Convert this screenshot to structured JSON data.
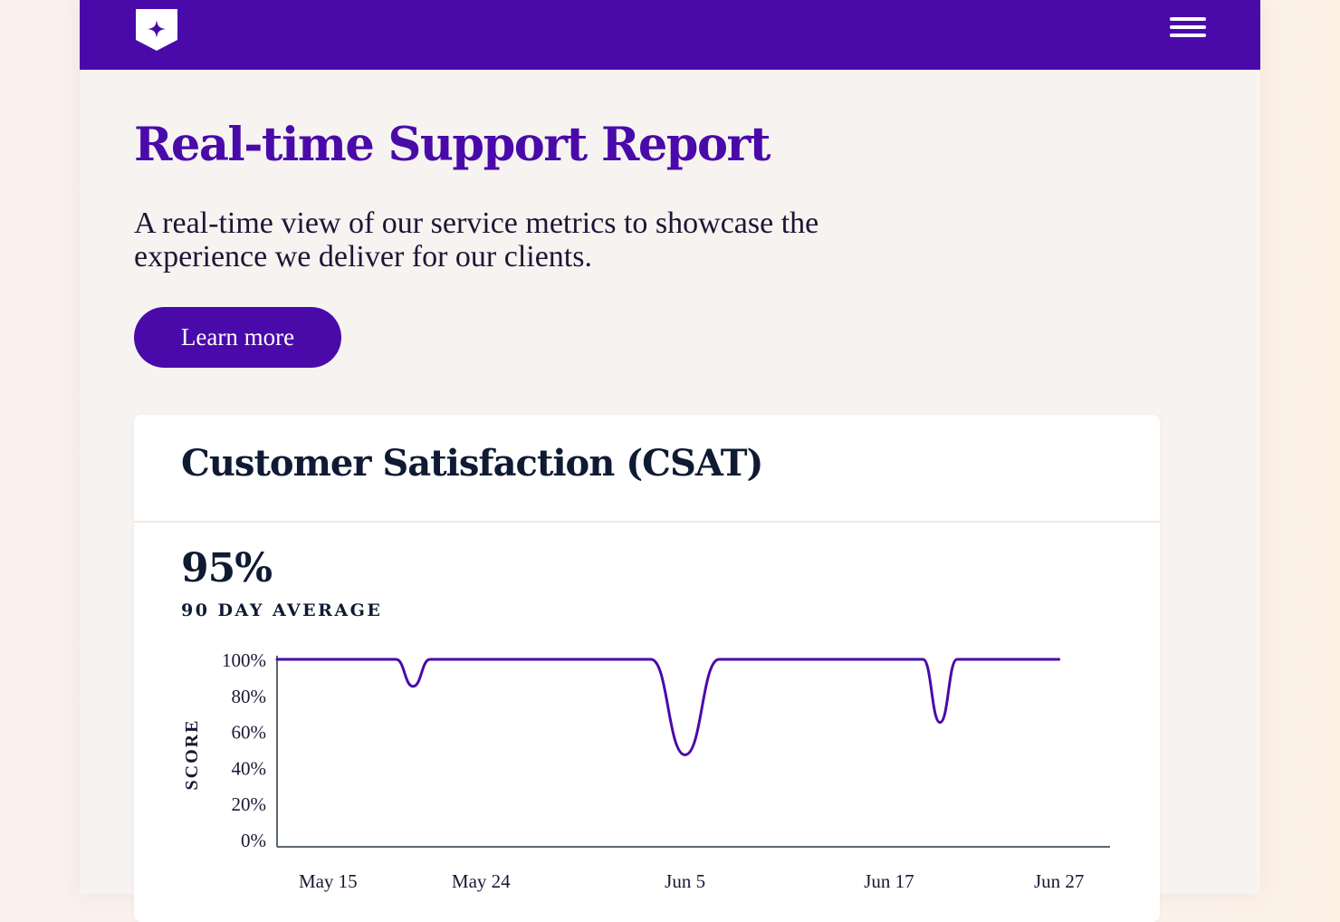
{
  "header": {
    "logo_icon": "shield-star-icon",
    "menu_icon": "hamburger-menu-icon",
    "background_color": "#4a0aaa"
  },
  "hero": {
    "title": "Real-time Support Report",
    "subtitle": "A real-time view of our service metrics to showcase the experience we deliver for our clients.",
    "cta_label": "Learn more"
  },
  "csat_card": {
    "title": "Customer Satisfaction (CSAT)",
    "average_value": "95%",
    "average_label": "90 DAY AVERAGE"
  },
  "chart_data": {
    "type": "line",
    "title": "",
    "xlabel": "",
    "ylabel": "SCORE",
    "ylim": [
      0,
      100
    ],
    "yticks": [
      "0%",
      "20%",
      "40%",
      "60%",
      "80%",
      "100%"
    ],
    "xticks": [
      "May 15",
      "May 24",
      "Jun 5",
      "Jun 17",
      "Jun 27"
    ],
    "x": [
      "May 12",
      "May 18",
      "May 19",
      "May 20",
      "May 21",
      "Jun 2",
      "Jun 3",
      "Jun 5",
      "Jun 7",
      "Jun 8",
      "Jun 18",
      "Jun 19",
      "Jun 20",
      "Jun 21",
      "Jun 27"
    ],
    "series": [
      {
        "values": [
          100,
          100,
          100,
          85,
          100,
          100,
          100,
          47,
          100,
          100,
          100,
          100,
          65,
          100,
          100
        ],
        "color": "#4a0aaa"
      }
    ],
    "grid": false
  }
}
